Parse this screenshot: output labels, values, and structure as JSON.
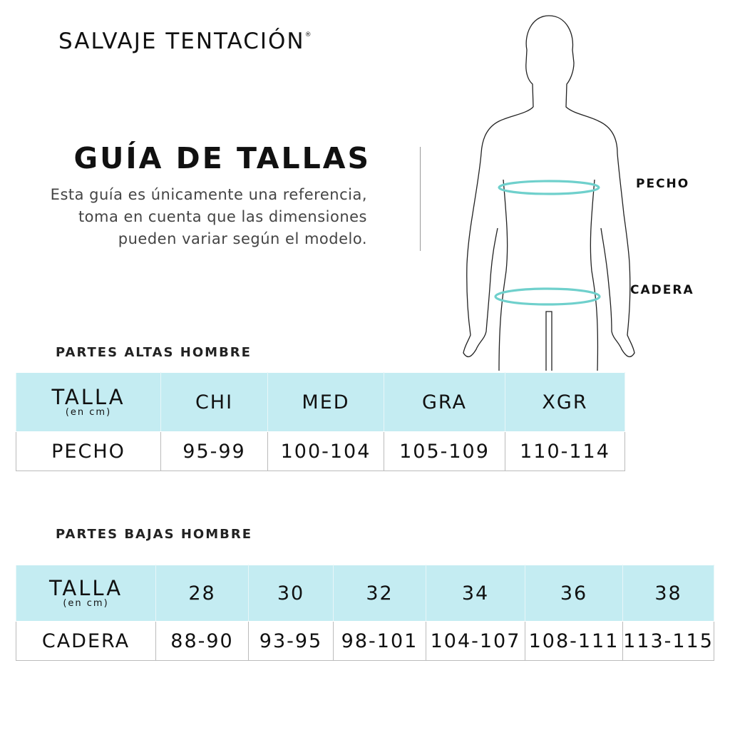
{
  "brand": {
    "name": "SALVAJE TENTACIÓN",
    "mark": "®"
  },
  "title": "GUÍA DE TALLAS",
  "description": "Esta guía es únicamente una referencia, toma en cuenta que las dimensiones pueden variar según el modelo.",
  "figure": {
    "chest_label": "PECHO",
    "hip_label": "CADERA",
    "measure_color": "#6fd0cc"
  },
  "colors": {
    "header_bg": "#c4ecf2"
  },
  "tops": {
    "section_title": "PARTES ALTAS HOMBRE",
    "header_label": "TALLA",
    "header_unit": "(en cm)",
    "sizes": [
      "CHI",
      "MED",
      "GRA",
      "XGR"
    ],
    "row_label": "PECHO",
    "values": [
      "95-99",
      "100-104",
      "105-109",
      "110-114"
    ]
  },
  "bottoms": {
    "section_title": "PARTES BAJAS HOMBRE",
    "header_label": "TALLA",
    "header_unit": "(en cm)",
    "sizes": [
      "28",
      "30",
      "32",
      "34",
      "36",
      "38"
    ],
    "row_label": "CADERA",
    "values": [
      "88-90",
      "93-95",
      "98-101",
      "104-107",
      "108-111",
      "113-115"
    ]
  }
}
